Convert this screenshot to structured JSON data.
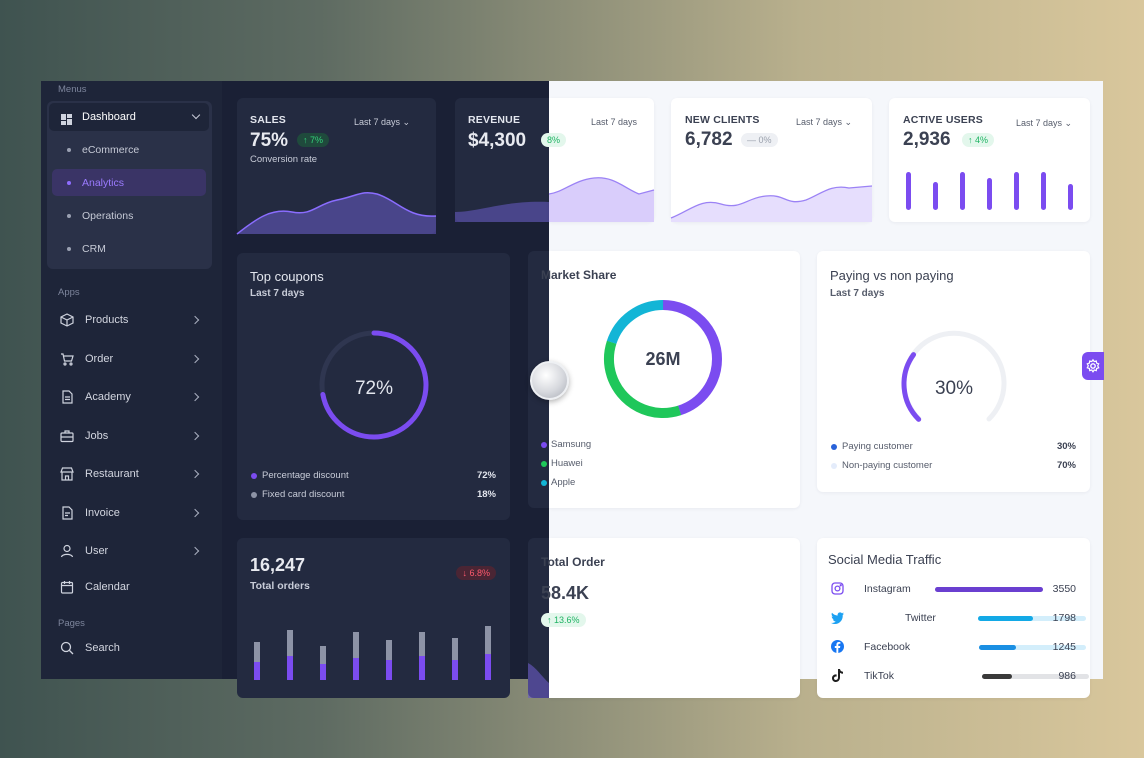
{
  "sidebar": {
    "menus_label": "Menus",
    "dashboard_label": "Dashboard",
    "submenu": [
      {
        "label": "eCommerce"
      },
      {
        "label": "Analytics"
      },
      {
        "label": "Operations"
      },
      {
        "label": "CRM"
      }
    ],
    "apps_label": "Apps",
    "apps": [
      {
        "label": "Products",
        "icon": "box-icon"
      },
      {
        "label": "Order",
        "icon": "cart-icon"
      },
      {
        "label": "Academy",
        "icon": "document-icon"
      },
      {
        "label": "Jobs",
        "icon": "briefcase-icon"
      },
      {
        "label": "Restaurant",
        "icon": "store-icon"
      },
      {
        "label": "Invoice",
        "icon": "invoice-icon"
      },
      {
        "label": "User",
        "icon": "user-icon"
      },
      {
        "label": "Calendar",
        "icon": "calendar-icon"
      }
    ],
    "pages_label": "Pages",
    "pages": [
      {
        "label": "Search",
        "icon": "search-icon"
      }
    ]
  },
  "stats": {
    "sales": {
      "title": "SALES",
      "value": "75%",
      "badge": "↑ 7%",
      "subtitle": "Conversion rate",
      "period": "Last 7 days"
    },
    "revenue": {
      "title": "REVENUE",
      "value": "$4,300",
      "badge": "8%",
      "period": "Last 7 days"
    },
    "new_clients": {
      "title": "NEW CLIENTS",
      "value": "6,782",
      "badge": "— 0%",
      "period": "Last 7 days"
    },
    "active_users": {
      "title": "ACTIVE USERS",
      "value": "2,936",
      "badge": "↑ 4%",
      "period": "Last 7 days"
    }
  },
  "coupons": {
    "title": "Top coupons",
    "subtitle": "Last 7 days",
    "center": "72%",
    "progress": 0.72,
    "legend": [
      {
        "label": "Percentage discount",
        "value": "72%"
      },
      {
        "label": "Fixed card discount",
        "value": "18%"
      }
    ]
  },
  "market": {
    "title": "Market Share",
    "center": "26M",
    "segments": [
      {
        "label": "Samsung",
        "share": 0.45
      },
      {
        "label": "Huawei",
        "share": 0.35
      },
      {
        "label": "Apple",
        "share": 0.2
      }
    ]
  },
  "paying": {
    "title": "Paying vs non paying",
    "subtitle": "Last 7 days",
    "center": "30%",
    "progress": 0.3,
    "legend": [
      {
        "label": "Paying customer",
        "value": "30%"
      },
      {
        "label": "Non-paying customer",
        "value": "70%"
      }
    ]
  },
  "orders": {
    "value": "16,247",
    "label": "Total orders",
    "badge": "↓ 6.8%"
  },
  "total_order": {
    "title": "Total Order",
    "value": "58.4K",
    "badge": "↑ 13.6%"
  },
  "social": {
    "title": "Social Media Traffic",
    "items": [
      {
        "label": "Instagram",
        "value": "3550",
        "share": 1.0
      },
      {
        "label": "Twitter",
        "value": "1798",
        "share": 0.51
      },
      {
        "label": "Facebook",
        "value": "1245",
        "share": 0.35
      },
      {
        "label": "TikTok",
        "value": "986",
        "share": 0.28
      }
    ]
  },
  "colors": {
    "accent": "#7b4cf0",
    "sidebar": "#1e2539",
    "dark_card": "#232a40",
    "green": "#1fc75a",
    "cyan": "#13b5d6"
  }
}
